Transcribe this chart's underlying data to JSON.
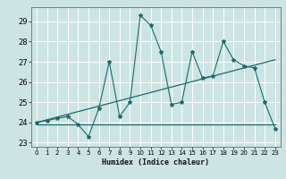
{
  "xlabel": "Humidex (Indice chaleur)",
  "ylabel": "",
  "bg_color": "#cde4e4",
  "grid_color": "#ffffff",
  "line_color": "#1a6b6b",
  "xlim": [
    -0.5,
    23.5
  ],
  "ylim": [
    22.8,
    29.7
  ],
  "yticks": [
    23,
    24,
    25,
    26,
    27,
    28,
    29
  ],
  "xticks": [
    0,
    1,
    2,
    3,
    4,
    5,
    6,
    7,
    8,
    9,
    10,
    11,
    12,
    13,
    14,
    15,
    16,
    17,
    18,
    19,
    20,
    21,
    22,
    23
  ],
  "series1_x": [
    0,
    1,
    2,
    3,
    4,
    5,
    6,
    7,
    8,
    9,
    10,
    11,
    12,
    13,
    14,
    15,
    16,
    17,
    18,
    19,
    20,
    21,
    22,
    23
  ],
  "series1_y": [
    24.0,
    24.1,
    24.2,
    24.3,
    23.9,
    23.3,
    24.7,
    27.0,
    24.3,
    25.0,
    29.3,
    28.8,
    27.5,
    24.9,
    25.0,
    27.5,
    26.2,
    26.3,
    28.0,
    27.1,
    26.8,
    26.7,
    25.0,
    23.7
  ],
  "series2_x": [
    0,
    23
  ],
  "series2_y": [
    24.0,
    27.1
  ],
  "series3_x": [
    0,
    23
  ],
  "series3_y": [
    23.9,
    23.9
  ]
}
